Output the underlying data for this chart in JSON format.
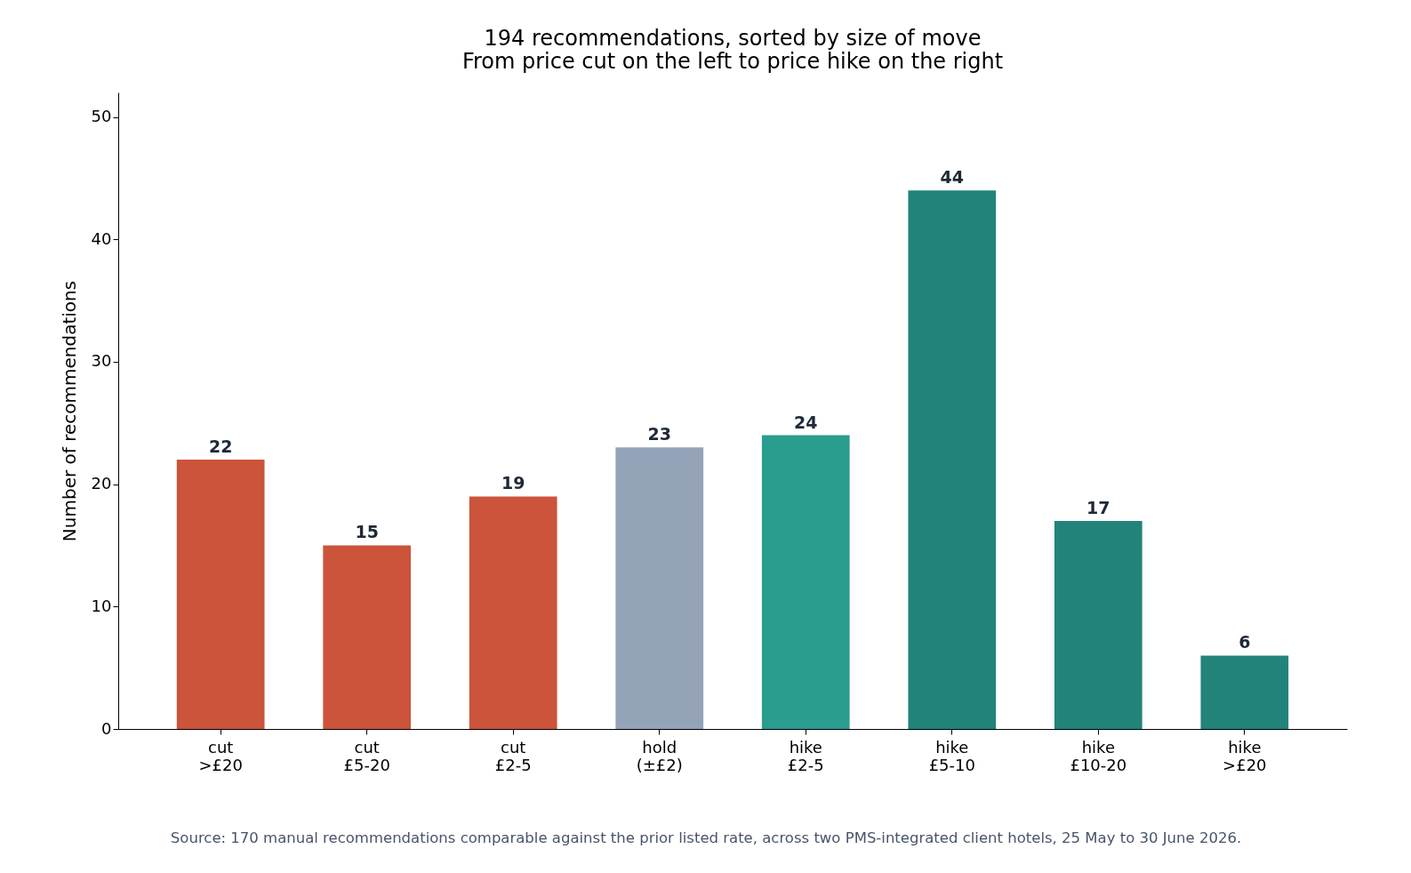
{
  "chart_data": {
    "type": "bar",
    "title": [
      "194 recommendations, sorted by size of move",
      "From price cut on the left to price hike on the right"
    ],
    "ylabel": "Number of recommendations",
    "categories": [
      "cut\n>£20",
      "cut\n£5-20",
      "cut\n£2-5",
      "hold\n(±£2)",
      "hike\n£2-5",
      "hike\n£5-10",
      "hike\n£10-20",
      "hike\n>£20"
    ],
    "values": [
      22,
      15,
      19,
      23,
      24,
      44,
      17,
      6
    ],
    "colors": [
      "#cb543a",
      "#cb543a",
      "#cb543a",
      "#94a3b8",
      "#2a9d8f",
      "#21837a",
      "#21837a",
      "#21837a"
    ],
    "ylim": [
      0,
      52
    ],
    "yticks": [
      0,
      10,
      20,
      30,
      40,
      50
    ],
    "grid": false,
    "data_labels": true,
    "annotations": [
      "Source: 170 manual recommendations comparable against the prior listed rate, across two PMS-integrated client hotels, 25 May to 30 June 2026."
    ]
  }
}
